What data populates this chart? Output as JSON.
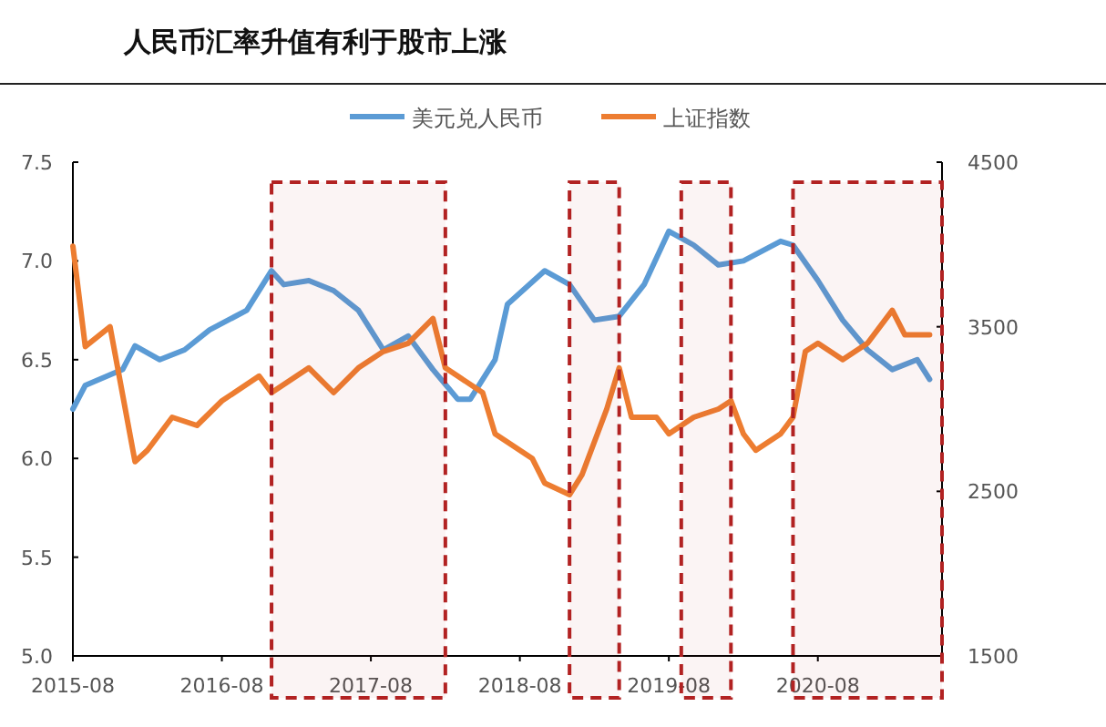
{
  "chart_data": {
    "type": "line",
    "title": "人民币汇率升值有利于股市上涨",
    "legend": "top",
    "grid": false,
    "line_style": "solid",
    "marker": "none",
    "x": [
      "2015-08",
      "2015-09",
      "2015-12",
      "2016-01",
      "2016-03",
      "2016-05",
      "2016-07",
      "2016-10",
      "2016-12",
      "2017-01",
      "2017-03",
      "2017-05",
      "2017-07",
      "2017-09",
      "2017-11",
      "2018-01",
      "2018-03",
      "2018-04",
      "2018-06",
      "2018-07",
      "2018-10",
      "2018-12",
      "2019-02",
      "2019-04",
      "2019-06",
      "2019-08",
      "2019-10",
      "2019-12",
      "2020-02",
      "2020-05",
      "2020-06",
      "2020-08",
      "2020-10",
      "2020-12",
      "2021-02",
      "2021-04",
      "2021-05"
    ],
    "series": [
      {
        "name": "美元兑人民币",
        "color": "#5b9bd5",
        "values": [
          6.25,
          6.37,
          6.45,
          6.57,
          6.5,
          6.55,
          6.65,
          6.75,
          6.95,
          6.88,
          6.9,
          6.85,
          6.75,
          6.55,
          6.62,
          6.45,
          6.3,
          6.3,
          6.5,
          6.78,
          6.95,
          6.88,
          6.7,
          6.72,
          6.88,
          7.15,
          7.08,
          6.98,
          7.0,
          7.1,
          7.08,
          6.9,
          6.7,
          6.55,
          6.45,
          6.5,
          6.4
        ]
      },
      {
        "name": "上证指数",
        "color": "#ed7d31",
        "axis": "y2",
        "x": [
          "2015-08",
          "2015-09",
          "2015-11",
          "2016-01",
          "2016-02",
          "2016-04",
          "2016-06",
          "2016-08",
          "2016-11",
          "2016-12",
          "2017-03",
          "2017-05",
          "2017-07",
          "2017-09",
          "2017-11",
          "2018-01",
          "2018-02",
          "2018-03",
          "2018-05",
          "2018-06",
          "2018-07",
          "2018-09",
          "2018-10",
          "2018-12",
          "2019-01",
          "2019-03",
          "2019-04",
          "2019-05",
          "2019-07",
          "2019-08",
          "2019-10",
          "2019-12",
          "2020-01",
          "2020-02",
          "2020-03",
          "2020-05",
          "2020-06",
          "2020-07",
          "2020-08",
          "2020-10",
          "2020-12",
          "2021-02",
          "2021-03",
          "2021-05"
        ],
        "values": [
          3990,
          3380,
          3500,
          2680,
          2750,
          2950,
          2900,
          3050,
          3200,
          3100,
          3250,
          3100,
          3250,
          3350,
          3400,
          3550,
          3250,
          3200,
          3100,
          2850,
          2800,
          2700,
          2550,
          2480,
          2600,
          3000,
          3250,
          2950,
          2950,
          2850,
          2950,
          3000,
          3050,
          2850,
          2750,
          2850,
          2950,
          3350,
          3400,
          3300,
          3400,
          3600,
          3450,
          3450
        ]
      }
    ],
    "xlim": [
      "2015-08",
      "2021-06"
    ],
    "xticks": [
      "2015-08",
      "2016-08",
      "2017-08",
      "2018-08",
      "2019-08",
      "2020-08"
    ],
    "ylim": [
      5.0,
      7.5
    ],
    "yticks": [
      {
        "value": 5.0,
        "label": "5.0"
      },
      {
        "value": 5.5,
        "label": "5.5"
      },
      {
        "value": 6.0,
        "label": "6.0"
      },
      {
        "value": 6.5,
        "label": "6.5"
      },
      {
        "value": 7.0,
        "label": "7.0"
      },
      {
        "value": 7.5,
        "label": "7.5"
      }
    ],
    "y2lim": [
      1500,
      4500
    ],
    "y2ticks": [
      1500,
      2500,
      3500,
      4500
    ],
    "bands": [
      {
        "axis": "x",
        "from": "2016-12",
        "to": "2018-02",
        "color": "#b22222"
      },
      {
        "axis": "x",
        "from": "2018-12",
        "to": "2019-04",
        "color": "#b22222"
      },
      {
        "axis": "x",
        "from": "2019-09",
        "to": "2020-01",
        "color": "#b22222"
      },
      {
        "axis": "x",
        "from": "2020-06",
        "to": "2021-06",
        "color": "#b22222"
      }
    ]
  }
}
